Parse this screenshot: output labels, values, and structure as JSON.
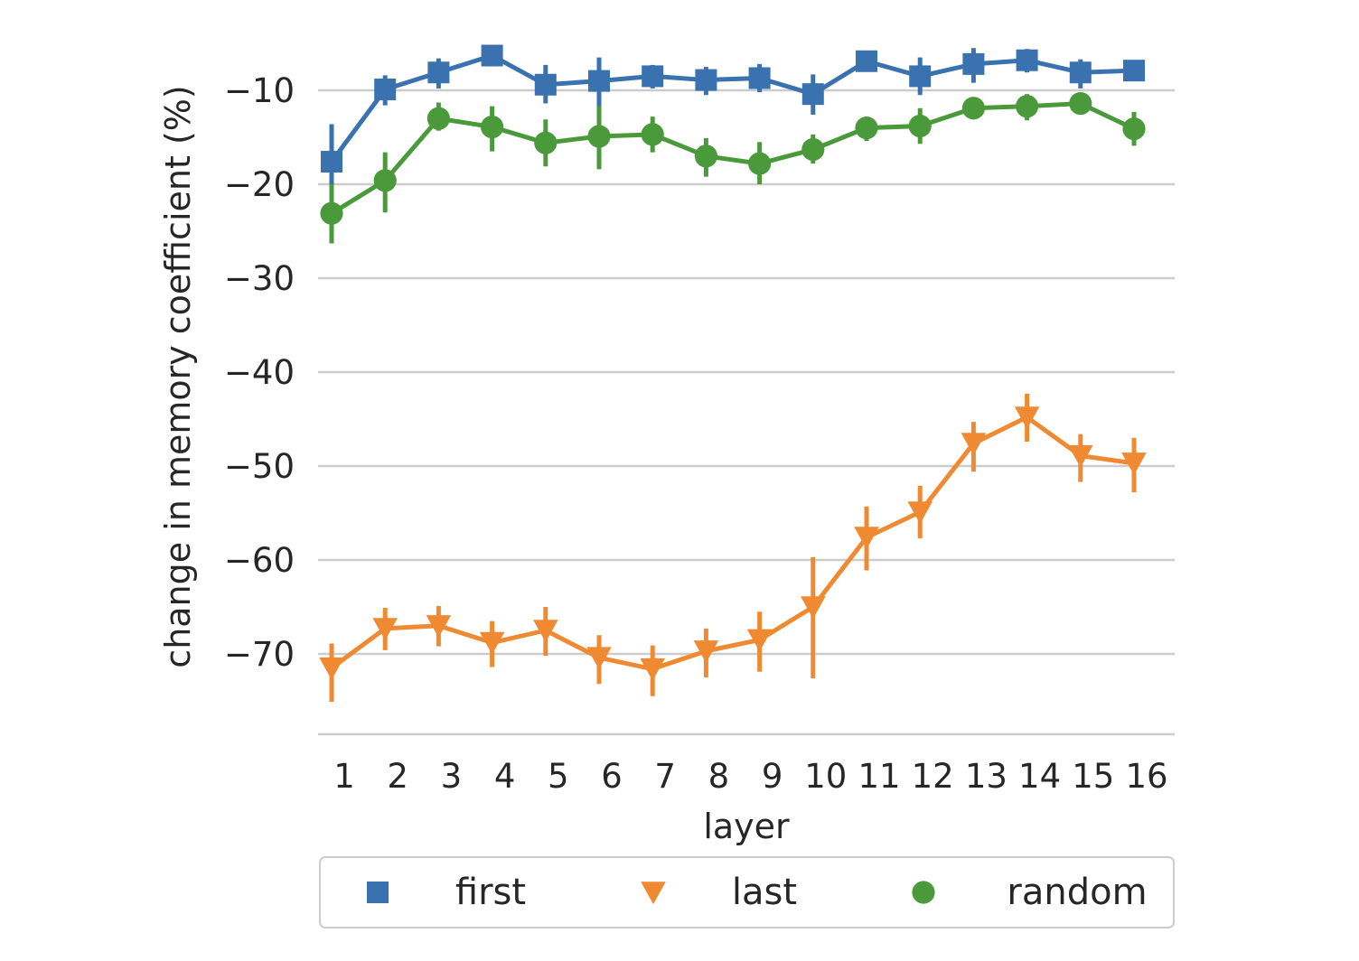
{
  "chart_data": {
    "type": "line",
    "xlabel": "layer",
    "ylabel": "change in memory coefficient (%)",
    "categories": [
      "1",
      "2",
      "3",
      "4",
      "5",
      "6",
      "7",
      "8",
      "9",
      "10",
      "11",
      "12",
      "13",
      "14",
      "15",
      "16"
    ],
    "ylim": [
      -80,
      -4
    ],
    "yticks": [
      -10,
      -20,
      -30,
      -40,
      -50,
      -60,
      -70
    ],
    "ytick_labels": [
      "−10",
      "−20",
      "−30",
      "−40",
      "−50",
      "−60",
      "−70"
    ],
    "grid": "horizontal",
    "legend_position": "bottom",
    "series": [
      {
        "name": "first",
        "marker": "square",
        "color": "#3a72b0",
        "values": [
          -17.6,
          -9.9,
          -8.1,
          -6.3,
          -9.4,
          -9.0,
          -8.5,
          -8.9,
          -8.7,
          -10.4,
          -6.9,
          -8.5,
          -7.2,
          -6.8,
          -8.1,
          -7.9
        ],
        "err_low": [
          -22.8,
          -11.6,
          -9.8,
          -7.4,
          -11.4,
          -11.8,
          -9.8,
          -10.5,
          -10.2,
          -12.6,
          -7.8,
          -10.5,
          -9.2,
          -8.1,
          -9.8,
          -8.6
        ],
        "err_high": [
          -13.6,
          -8.4,
          -6.6,
          -5.4,
          -7.3,
          -6.5,
          -7.3,
          -7.5,
          -7.2,
          -8.3,
          -6.1,
          -6.5,
          -5.5,
          -5.6,
          -6.7,
          -7.2
        ]
      },
      {
        "name": "last",
        "marker": "triangle-down",
        "color": "#f08a32",
        "values": [
          -71.5,
          -67.3,
          -67.0,
          -68.8,
          -67.5,
          -70.4,
          -71.6,
          -69.7,
          -68.5,
          -65.0,
          -57.6,
          -54.9,
          -47.6,
          -44.8,
          -48.9,
          -49.7
        ],
        "err_low": [
          -75.1,
          -69.6,
          -69.2,
          -71.4,
          -70.2,
          -73.2,
          -74.5,
          -72.5,
          -71.9,
          -72.6,
          -61.1,
          -57.7,
          -50.6,
          -47.4,
          -51.7,
          -52.8
        ],
        "err_high": [
          -68.9,
          -65.1,
          -64.9,
          -66.5,
          -65.0,
          -68.0,
          -69.1,
          -67.3,
          -65.5,
          -59.7,
          -54.3,
          -52.1,
          -45.3,
          -42.3,
          -46.6,
          -47.0
        ]
      },
      {
        "name": "random",
        "marker": "circle",
        "color": "#4a9a3c",
        "values": [
          -23.1,
          -19.6,
          -13.0,
          -13.9,
          -15.6,
          -14.9,
          -14.7,
          -17.0,
          -17.8,
          -16.3,
          -14.0,
          -13.8,
          -11.9,
          -11.7,
          -11.4,
          -14.1
        ],
        "err_low": [
          -26.3,
          -23.0,
          -14.3,
          -16.5,
          -18.1,
          -18.4,
          -16.6,
          -19.2,
          -20.0,
          -17.8,
          -15.4,
          -15.7,
          -12.5,
          -13.2,
          -12.3,
          -15.9
        ],
        "err_high": [
          -20.0,
          -16.6,
          -11.3,
          -11.7,
          -13.1,
          -11.7,
          -12.8,
          -15.1,
          -15.5,
          -14.7,
          -12.8,
          -11.9,
          -11.3,
          -10.4,
          -10.6,
          -12.3
        ]
      }
    ]
  }
}
